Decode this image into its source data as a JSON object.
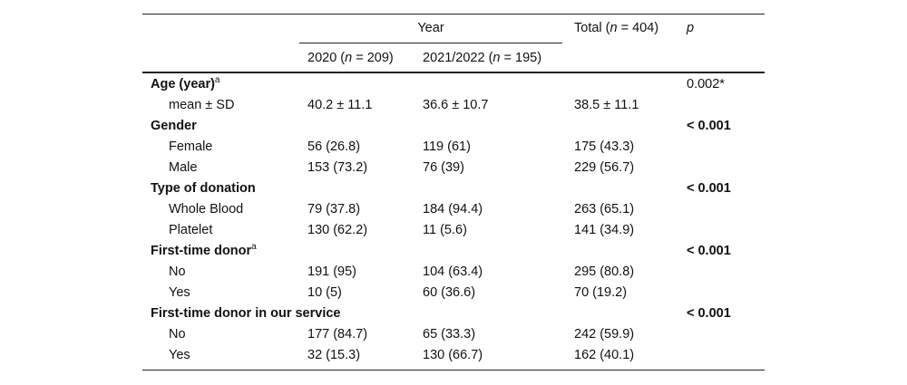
{
  "header": {
    "year": "Year",
    "col1": {
      "pre": "2020 (",
      "var": "n",
      "post": " = 209)"
    },
    "col2": {
      "pre": "2021/2022 (",
      "var": "n",
      "post": " = 195)"
    },
    "total": {
      "pre": "Total (",
      "var": "n",
      "post": " = 404)"
    },
    "p": "p"
  },
  "rows": [
    {
      "label": "Age (year)",
      "sup": "a",
      "p": "0.002*"
    },
    {
      "label": "mean ± SD",
      "values": [
        "40.2 ± 11.1",
        "36.6 ± 10.7",
        "38.5 ± 11.1"
      ]
    },
    {
      "label": "Gender",
      "p": "< 0.001"
    },
    {
      "label": "Female",
      "values": [
        "56 (26.8)",
        "119 (61)",
        "175 (43.3)"
      ]
    },
    {
      "label": "Male",
      "values": [
        "153 (73.2)",
        "76 (39)",
        "229 (56.7)"
      ]
    },
    {
      "label": "Type of donation",
      "p": "< 0.001"
    },
    {
      "label": "Whole Blood",
      "values": [
        "79 (37.8)",
        "184 (94.4)",
        "263 (65.1)"
      ]
    },
    {
      "label": "Platelet",
      "values": [
        "130 (62.2)",
        "11 (5.6)",
        "141 (34.9)"
      ]
    },
    {
      "label": "First-time donor",
      "sup": "a",
      "p": "< 0.001"
    },
    {
      "label": "No",
      "values": [
        "191 (95)",
        "104 (63.4)",
        "295 (80.8)"
      ]
    },
    {
      "label": "Yes",
      "values": [
        "10 (5)",
        "60 (36.6)",
        "70 (19.2)"
      ]
    },
    {
      "label": "First-time donor in our service",
      "p": "< 0.001"
    },
    {
      "label": "No",
      "values": [
        "177 (84.7)",
        "65 (33.3)",
        "242 (59.9)"
      ]
    },
    {
      "label": "Yes",
      "values": [
        "32 (15.3)",
        "130 (66.7)",
        "162 (40.1)"
      ]
    }
  ]
}
